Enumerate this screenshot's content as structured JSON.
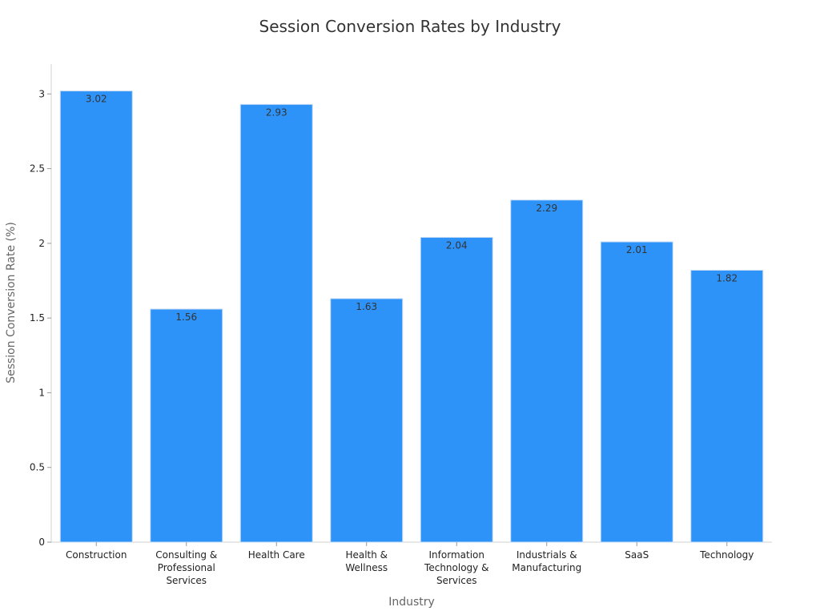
{
  "chart_data": {
    "type": "bar",
    "title": "Session Conversion Rates by Industry",
    "xlabel": "Industry",
    "ylabel": "Session Conversion Rate (%)",
    "ylim": [
      0,
      3.2
    ],
    "yticks": [
      0,
      0.5,
      1,
      1.5,
      2,
      2.5,
      3
    ],
    "ytick_labels": [
      "0",
      "0.5",
      "1",
      "1.5",
      "2",
      "2.5",
      "3"
    ],
    "categories": [
      [
        "Construction"
      ],
      [
        "Consulting &",
        "Professional",
        "Services"
      ],
      [
        "Health Care"
      ],
      [
        "Health &",
        "Wellness"
      ],
      [
        "Information",
        "Technology &",
        "Services"
      ],
      [
        "Industrials &",
        "Manufacturing"
      ],
      [
        "SaaS"
      ],
      [
        "Technology"
      ]
    ],
    "values": [
      3.02,
      1.56,
      2.93,
      1.63,
      2.04,
      2.29,
      2.01,
      1.82
    ],
    "value_labels": [
      "3.02",
      "1.56",
      "2.93",
      "1.63",
      "2.04",
      "2.29",
      "2.01",
      "1.82"
    ],
    "bar_color": "#2E93F9",
    "grid": false,
    "legend": "none"
  }
}
